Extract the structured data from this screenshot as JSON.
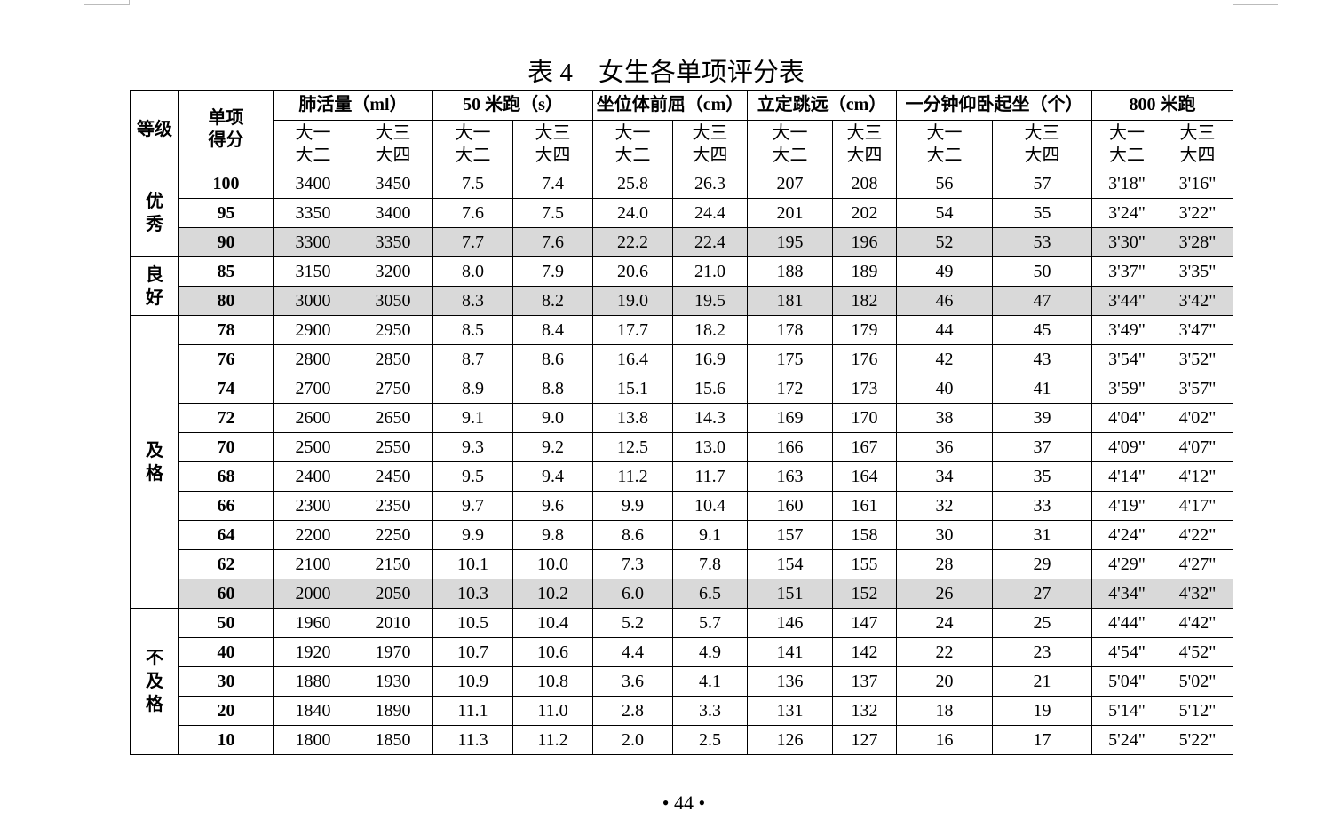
{
  "title": "表 4　女生各单项评分表",
  "table": {
    "headers": {
      "grade": "等级",
      "score": "单项得分",
      "tests": [
        "肺活量（ml）",
        "50 米跑（s）",
        "坐位体前屈（cm）",
        "立定跳远（cm）",
        "一分钟仰卧起坐（个）",
        "800 米跑"
      ],
      "subheaders": [
        "大一大二",
        "大三大四",
        "大一大二",
        "大三大四",
        "大一大二",
        "大三大四",
        "大一大二",
        "大三大四",
        "大一大二",
        "大三大四",
        "大一大二",
        "大三大四"
      ]
    },
    "groups": [
      {
        "grade": "优秀",
        "rows": [
          [
            "100",
            "3400",
            "3450",
            "7.5",
            "7.4",
            "25.8",
            "26.3",
            "207",
            "208",
            "56",
            "57",
            "3'18\"",
            "3'16\""
          ],
          [
            "95",
            "3350",
            "3400",
            "7.6",
            "7.5",
            "24.0",
            "24.4",
            "201",
            "202",
            "54",
            "55",
            "3'24\"",
            "3'22\""
          ],
          [
            "90",
            "3300",
            "3350",
            "7.7",
            "7.6",
            "22.2",
            "22.4",
            "195",
            "196",
            "52",
            "53",
            "3'30\"",
            "3'28\""
          ]
        ]
      },
      {
        "grade": "良好",
        "rows": [
          [
            "85",
            "3150",
            "3200",
            "8.0",
            "7.9",
            "20.6",
            "21.0",
            "188",
            "189",
            "49",
            "50",
            "3'37\"",
            "3'35\""
          ],
          [
            "80",
            "3000",
            "3050",
            "8.3",
            "8.2",
            "19.0",
            "19.5",
            "181",
            "182",
            "46",
            "47",
            "3'44\"",
            "3'42\""
          ]
        ]
      },
      {
        "grade": "及格",
        "rows": [
          [
            "78",
            "2900",
            "2950",
            "8.5",
            "8.4",
            "17.7",
            "18.2",
            "178",
            "179",
            "44",
            "45",
            "3'49\"",
            "3'47\""
          ],
          [
            "76",
            "2800",
            "2850",
            "8.7",
            "8.6",
            "16.4",
            "16.9",
            "175",
            "176",
            "42",
            "43",
            "3'54\"",
            "3'52\""
          ],
          [
            "74",
            "2700",
            "2750",
            "8.9",
            "8.8",
            "15.1",
            "15.6",
            "172",
            "173",
            "40",
            "41",
            "3'59\"",
            "3'57\""
          ],
          [
            "72",
            "2600",
            "2650",
            "9.1",
            "9.0",
            "13.8",
            "14.3",
            "169",
            "170",
            "38",
            "39",
            "4'04\"",
            "4'02\""
          ],
          [
            "70",
            "2500",
            "2550",
            "9.3",
            "9.2",
            "12.5",
            "13.0",
            "166",
            "167",
            "36",
            "37",
            "4'09\"",
            "4'07\""
          ],
          [
            "68",
            "2400",
            "2450",
            "9.5",
            "9.4",
            "11.2",
            "11.7",
            "163",
            "164",
            "34",
            "35",
            "4'14\"",
            "4'12\""
          ],
          [
            "66",
            "2300",
            "2350",
            "9.7",
            "9.6",
            "9.9",
            "10.4",
            "160",
            "161",
            "32",
            "33",
            "4'19\"",
            "4'17\""
          ],
          [
            "64",
            "2200",
            "2250",
            "9.9",
            "9.8",
            "8.6",
            "9.1",
            "157",
            "158",
            "30",
            "31",
            "4'24\"",
            "4'22\""
          ],
          [
            "62",
            "2100",
            "2150",
            "10.1",
            "10.0",
            "7.3",
            "7.8",
            "154",
            "155",
            "28",
            "29",
            "4'29\"",
            "4'27\""
          ],
          [
            "60",
            "2000",
            "2050",
            "10.3",
            "10.2",
            "6.0",
            "6.5",
            "151",
            "152",
            "26",
            "27",
            "4'34\"",
            "4'32\""
          ]
        ]
      },
      {
        "grade": "不及格",
        "rows": [
          [
            "50",
            "1960",
            "2010",
            "10.5",
            "10.4",
            "5.2",
            "5.7",
            "146",
            "147",
            "24",
            "25",
            "4'44\"",
            "4'42\""
          ],
          [
            "40",
            "1920",
            "1970",
            "10.7",
            "10.6",
            "4.4",
            "4.9",
            "141",
            "142",
            "22",
            "23",
            "4'54\"",
            "4'52\""
          ],
          [
            "30",
            "1880",
            "1930",
            "10.9",
            "10.8",
            "3.6",
            "4.1",
            "136",
            "137",
            "20",
            "21",
            "5'04\"",
            "5'02\""
          ],
          [
            "20",
            "1840",
            "1890",
            "11.1",
            "11.0",
            "2.8",
            "3.3",
            "131",
            "132",
            "18",
            "19",
            "5'14\"",
            "5'12\""
          ],
          [
            "10",
            "1800",
            "1850",
            "11.3",
            "11.2",
            "2.0",
            "2.5",
            "126",
            "127",
            "16",
            "17",
            "5'24\"",
            "5'22\""
          ]
        ]
      }
    ]
  },
  "page_number": "• 44 •"
}
